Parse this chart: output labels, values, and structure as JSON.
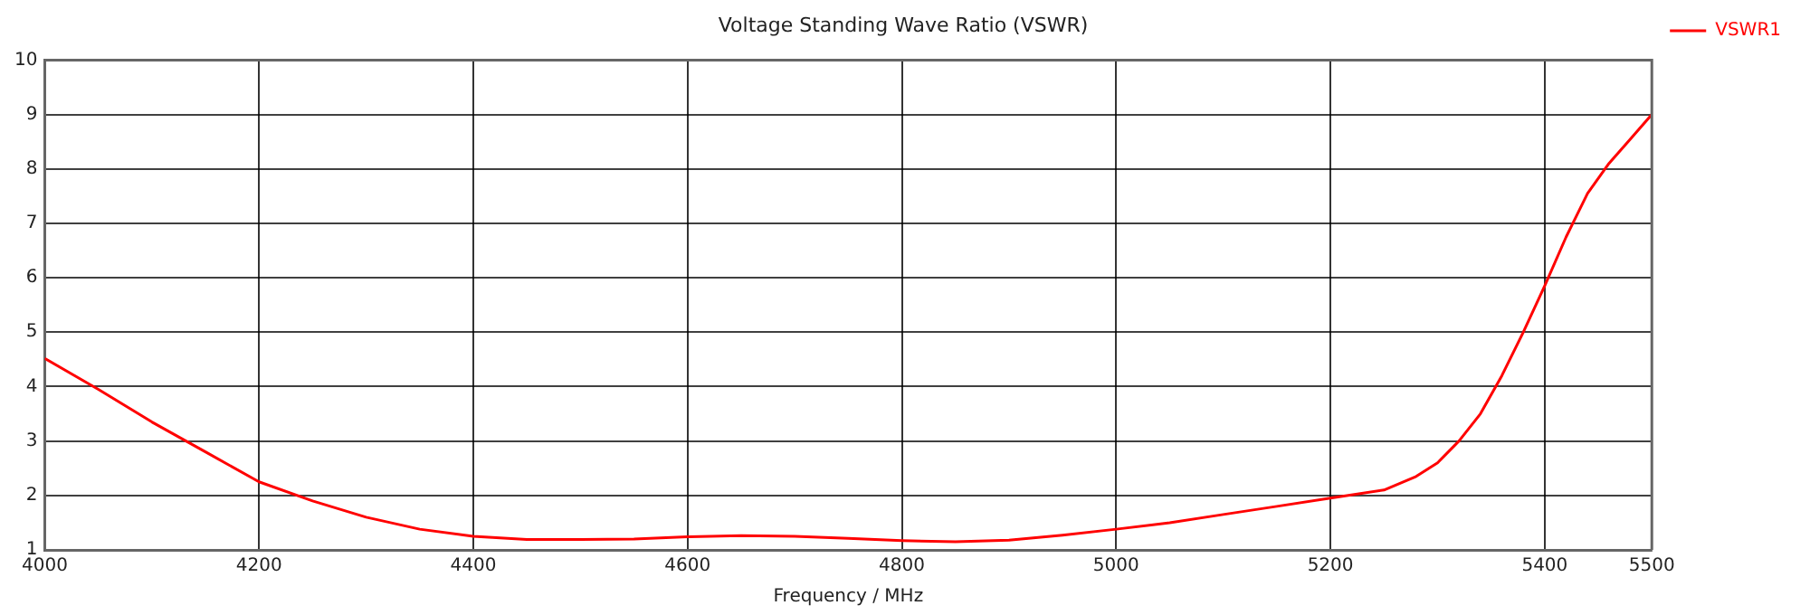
{
  "chart_data": {
    "type": "line",
    "title": "Voltage Standing Wave Ratio (VSWR)",
    "xlabel": "Frequency / MHz",
    "x": [
      4000,
      4050,
      4100,
      4150,
      4200,
      4250,
      4300,
      4350,
      4400,
      4450,
      4500,
      4550,
      4600,
      4650,
      4700,
      4750,
      4800,
      4850,
      4900,
      4950,
      5000,
      5050,
      5100,
      5150,
      5200,
      5250,
      5280,
      5300,
      5320,
      5340,
      5360,
      5380,
      5400,
      5420,
      5440,
      5460,
      5480,
      5500
    ],
    "series": [
      {
        "name": "VSWR1",
        "color": "#ff0000",
        "values": [
          4.52,
          3.95,
          3.35,
          2.8,
          2.25,
          1.9,
          1.6,
          1.38,
          1.25,
          1.19,
          1.19,
          1.2,
          1.24,
          1.26,
          1.25,
          1.21,
          1.17,
          1.15,
          1.18,
          1.27,
          1.38,
          1.5,
          1.65,
          1.8,
          1.95,
          2.1,
          2.35,
          2.6,
          3.0,
          3.5,
          4.2,
          5.0,
          5.85,
          6.75,
          7.55,
          8.1,
          8.55,
          9.0
        ]
      }
    ],
    "xlim": [
      4000,
      5500
    ],
    "xticks": [
      4000,
      4200,
      4400,
      4600,
      4800,
      5000,
      5200,
      5400,
      5500
    ],
    "ylim": [
      1,
      10
    ],
    "yticks": [
      1,
      2,
      3,
      4,
      5,
      6,
      7,
      8,
      9,
      10
    ],
    "grid": true,
    "legend": "top right",
    "marker": "none",
    "line_style": "solid"
  }
}
